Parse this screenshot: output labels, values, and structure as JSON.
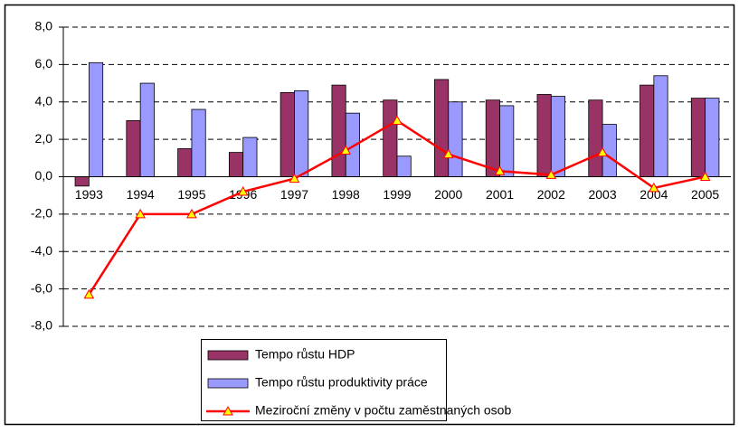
{
  "chart_data": {
    "type": "bar_line",
    "categories": [
      "1993",
      "1994",
      "1995",
      "1996",
      "1997",
      "1998",
      "1999",
      "2000",
      "2001",
      "2002",
      "2003",
      "2004",
      "2005"
    ],
    "series": [
      {
        "name": "Tempo růstu HDP",
        "type": "bar",
        "color": "#993366",
        "values": [
          -0.5,
          3.0,
          1.5,
          1.3,
          4.5,
          4.9,
          4.1,
          5.2,
          4.1,
          4.4,
          4.1,
          4.9,
          4.2
        ]
      },
      {
        "name": "Tempo růstu produktivity práce",
        "type": "bar",
        "color": "#9999ff",
        "values": [
          6.1,
          5.0,
          3.6,
          2.1,
          4.6,
          3.4,
          1.1,
          4.0,
          3.8,
          4.3,
          2.8,
          5.4,
          4.2
        ]
      },
      {
        "name": "Meziroční změny v počtu zaměstnaných osob",
        "type": "line",
        "color": "#ff0000",
        "marker_color": "#ffff00",
        "values": [
          -6.3,
          -2.0,
          -2.0,
          -0.8,
          -0.1,
          1.4,
          3.0,
          1.2,
          0.3,
          0.1,
          1.3,
          -0.6,
          0.0
        ]
      }
    ],
    "ylim": [
      -8,
      8
    ],
    "yticks": [
      {
        "value": -8,
        "label": "-8,0"
      },
      {
        "value": -6,
        "label": "-6,0"
      },
      {
        "value": -4,
        "label": "-4,0"
      },
      {
        "value": -2,
        "label": "-2,0"
      },
      {
        "value": 0,
        "label": "0,0"
      },
      {
        "value": 2,
        "label": "2,0"
      },
      {
        "value": 4,
        "label": "4,0"
      },
      {
        "value": 6,
        "label": "6,0"
      },
      {
        "value": 8,
        "label": "8,0"
      }
    ],
    "grid": true,
    "legend": "bottom"
  }
}
